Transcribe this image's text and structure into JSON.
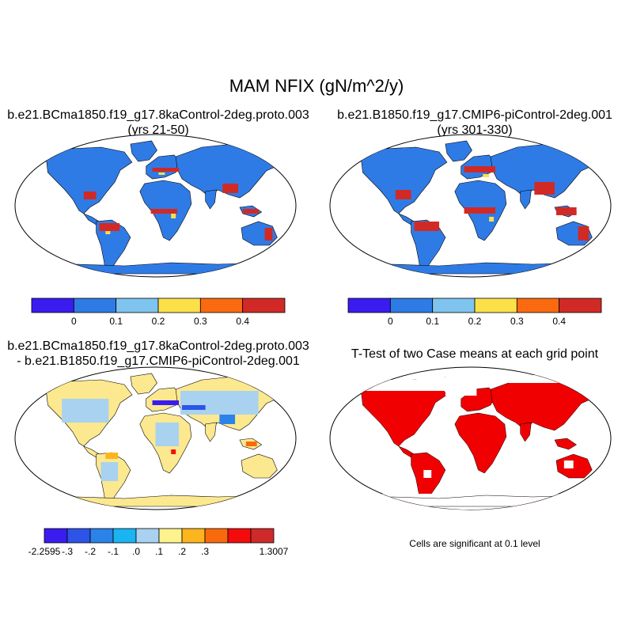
{
  "title": "MAM NFIX (gN/m^2/y)",
  "panels": {
    "case1": {
      "title_line1": "b.e21.BCma1850.f19_g17.8kaControl-2deg.proto.003",
      "title_line2": "(yrs 21-50)"
    },
    "case2": {
      "title_line1": "b.e21.B1850.f19_g17.CMIP6-piControl-2deg.001",
      "title_line2": "(yrs 301-330)"
    },
    "diff": {
      "title_line1": "b.e21.BCma1850.f19_g17.8kaControl-2deg.proto.003",
      "title_line2": "- b.e21.B1850.f19_g17.CMIP6-piControl-2deg.001"
    },
    "ttest": {
      "title": "T-Test of two Case means at each grid point",
      "note": "Cells are significant at 0.1 level"
    }
  },
  "colorbars": {
    "case": {
      "labels": [
        "0",
        "0.1",
        "0.2",
        "0.3",
        "0.4"
      ],
      "colors": [
        "#3a1cf0",
        "#2f7be6",
        "#7ec4ee",
        "#fce04a",
        "#fa6a10",
        "#d12a26"
      ]
    },
    "diff": {
      "labels": [
        "-2.2595",
        "-.3",
        "-.2",
        "-.1",
        ".0",
        ".1",
        ".2",
        ".3",
        "1.3007"
      ],
      "colors": [
        "#3b1cf0",
        "#2d54e8",
        "#2b82e8",
        "#1ab4f2",
        "#a8d2ef",
        "#fcf38e",
        "#fcb51c",
        "#f96a0d",
        "#f40c0c",
        "#cf2a2a"
      ]
    }
  },
  "colors": {
    "ocean": "#ffffff",
    "land_base_case": "#2f7be6",
    "land_base_diff": "#fce88e",
    "significant": "#f00000"
  }
}
